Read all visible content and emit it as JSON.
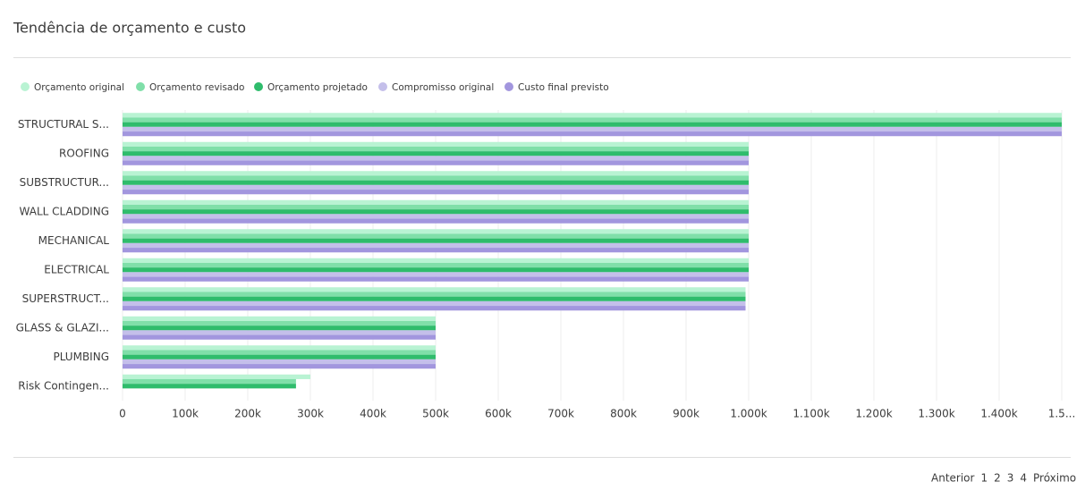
{
  "chart_data": {
    "type": "bar",
    "orientation": "horizontal",
    "title": "Tendência de orçamento e custo",
    "categories": [
      "STRUCTURAL S...",
      "ROOFING",
      "SUBSTRUCTUR...",
      "WALL CLADDING",
      "MECHANICAL",
      "ELECTRICAL",
      "SUPERSTRUCT...",
      "GLASS & GLAZI...",
      "PLUMBING",
      "Risk Contingen..."
    ],
    "series": [
      {
        "name": "Orçamento original",
        "color": "#b9f3d3",
        "values": [
          1500000,
          1000000,
          1000000,
          1000000,
          1000000,
          1000000,
          995000,
          500000,
          500000,
          300000
        ]
      },
      {
        "name": "Orçamento revisado",
        "color": "#80dfa9",
        "values": [
          1500000,
          1000000,
          1000000,
          1000000,
          1000000,
          1000000,
          995000,
          500000,
          500000,
          277000
        ]
      },
      {
        "name": "Orçamento projetado",
        "color": "#2fbc6c",
        "values": [
          1500000,
          1000000,
          1000000,
          1000000,
          1000000,
          1000000,
          995000,
          500000,
          500000,
          277000
        ]
      },
      {
        "name": "Compromisso original",
        "color": "#c4bfea",
        "values": [
          1500000,
          1000000,
          1000000,
          1000000,
          1000000,
          1000000,
          995000,
          500000,
          500000,
          0
        ]
      },
      {
        "name": "Custo final previsto",
        "color": "#a296de",
        "values": [
          1500000,
          1000000,
          1000000,
          1000000,
          1000000,
          1000000,
          995000,
          500000,
          500000,
          0
        ]
      }
    ],
    "xlim": [
      0,
      1500000
    ],
    "xticks": [
      0,
      {
        "value": 100000,
        "label": "100k"
      },
      {
        "value": 200000,
        "label": "200k"
      },
      {
        "value": 300000,
        "label": "300k"
      },
      {
        "value": 400000,
        "label": "400k"
      },
      {
        "value": 500000,
        "label": "500k"
      },
      {
        "value": 600000,
        "label": "600k"
      },
      {
        "value": 700000,
        "label": "700k"
      },
      {
        "value": 800000,
        "label": "800k"
      },
      {
        "value": 900000,
        "label": "900k"
      },
      {
        "value": 1000000,
        "label": "1.000k"
      },
      {
        "value": 1100000,
        "label": "1.100k"
      },
      {
        "value": 1200000,
        "label": "1.200k"
      },
      {
        "value": 1300000,
        "label": "1.300k"
      },
      {
        "value": 1400000,
        "label": "1.400k"
      },
      {
        "value": 1500000,
        "label": "1.5..."
      }
    ],
    "grid": true,
    "legend": "top"
  },
  "pagination": {
    "previous": "Anterior",
    "pages": [
      "1",
      "2",
      "3",
      "4"
    ],
    "next": "Próximo"
  }
}
